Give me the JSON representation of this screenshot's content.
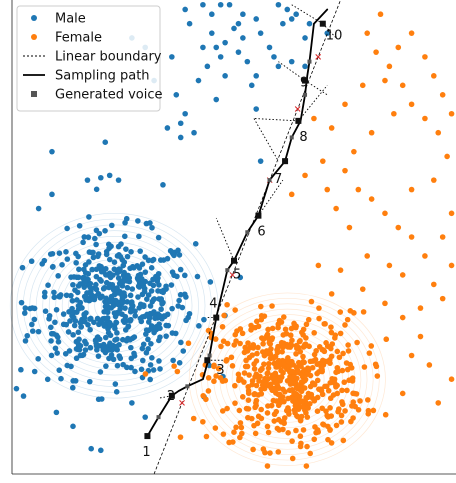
{
  "chart_data": {
    "type": "scatter",
    "title": "",
    "xlabel": "",
    "ylabel": "",
    "grid": false,
    "axes_visible": false,
    "xlim": [
      0,
      1
    ],
    "ylim": [
      0,
      1
    ],
    "legend": {
      "placement": "top-left",
      "entries": [
        {
          "label": "Male",
          "marker": "dot",
          "color": "#1f77b4"
        },
        {
          "label": "Female",
          "marker": "dot",
          "color": "#ff7f0e"
        },
        {
          "label": "Linear boundary",
          "marker": "dashed-line",
          "color": "#000000"
        },
        {
          "label": "Sampling path",
          "marker": "solid-line",
          "color": "#000000"
        },
        {
          "label": "Generated voice",
          "marker": "square",
          "color": "#555555"
        }
      ]
    },
    "series": [
      {
        "name": "Male",
        "color": "#1f77b4",
        "clusters": [
          {
            "center": [
              0.23,
              0.355
            ],
            "spread": [
              0.09,
              0.075
            ],
            "count": 560
          }
        ],
        "outliers": [
          [
            0.06,
            0.56
          ],
          [
            0.09,
            0.59
          ],
          [
            0.17,
            0.62
          ],
          [
            0.2,
            0.625
          ],
          [
            0.22,
            0.63
          ],
          [
            0.24,
            0.62
          ],
          [
            0.34,
            0.61
          ],
          [
            0.09,
            0.68
          ],
          [
            0.21,
            0.7
          ],
          [
            0.35,
            0.73
          ],
          [
            0.41,
            0.72
          ],
          [
            0.39,
            0.76
          ],
          [
            0.46,
            0.79
          ],
          [
            0.42,
            0.83
          ],
          [
            0.43,
            0.9
          ],
          [
            0.44,
            0.86
          ],
          [
            0.4,
            0.95
          ],
          [
            0.39,
            0.98
          ],
          [
            0.45,
            0.97
          ],
          [
            0.49,
            0.99
          ],
          [
            0.52,
            0.97
          ],
          [
            0.5,
            0.94
          ],
          [
            0.51,
            0.89
          ],
          [
            0.46,
            0.9
          ],
          [
            0.48,
            0.91
          ],
          [
            0.47,
            0.88
          ],
          [
            0.53,
            0.87
          ],
          [
            0.55,
            0.84
          ],
          [
            0.55,
            0.77
          ],
          [
            0.51,
            0.95
          ],
          [
            0.55,
            0.96
          ],
          [
            0.56,
            0.93
          ],
          [
            0.59,
            0.88
          ],
          [
            0.61,
            0.95
          ],
          [
            0.6,
            0.99
          ],
          [
            0.64,
            0.97
          ],
          [
            0.67,
            0.95
          ],
          [
            0.71,
            0.93
          ],
          [
            0.66,
            0.92
          ],
          [
            0.63,
            0.87
          ],
          [
            0.6,
            0.86
          ],
          [
            0.32,
            0.83
          ],
          [
            0.38,
            0.71
          ],
          [
            0.2,
            0.05
          ],
          [
            0.27,
            0.15
          ],
          [
            0.3,
            0.12
          ],
          [
            0.1,
            0.13
          ],
          [
            0.01,
            0.18
          ],
          [
            0.02,
            0.22
          ],
          [
            0.03,
            0.35
          ],
          [
            0.37,
            0.8
          ],
          [
            0.43,
            0.99
          ],
          [
            0.56,
            0.66
          ],
          [
            0.58,
            0.9
          ],
          [
            0.62,
            0.98
          ],
          [
            0.66,
            0.86
          ],
          [
            0.54,
            0.82
          ],
          [
            0.48,
            0.84
          ],
          [
            0.52,
            0.92
          ],
          [
            0.45,
            0.93
          ],
          [
            0.36,
            0.88
          ],
          [
            0.3,
            0.9
          ],
          [
            0.27,
            0.92
          ],
          [
            0.38,
            0.74
          ],
          [
            0.47,
            0.99
          ],
          [
            0.63,
            0.96
          ]
        ]
      },
      {
        "name": "Female",
        "color": "#ff7f0e",
        "clusters": [
          {
            "center": [
              0.62,
              0.2
            ],
            "spread": [
              0.085,
              0.07
            ],
            "count": 560
          }
        ],
        "outliers": [
          [
            0.71,
            0.6
          ],
          [
            0.73,
            0.56
          ],
          [
            0.78,
            0.6
          ],
          [
            0.81,
            0.58
          ],
          [
            0.84,
            0.55
          ],
          [
            0.87,
            0.52
          ],
          [
            0.9,
            0.5
          ],
          [
            0.76,
            0.52
          ],
          [
            0.69,
            0.44
          ],
          [
            0.74,
            0.43
          ],
          [
            0.8,
            0.46
          ],
          [
            0.85,
            0.44
          ],
          [
            0.88,
            0.42
          ],
          [
            0.93,
            0.46
          ],
          [
            0.95,
            0.4
          ],
          [
            0.97,
            0.37
          ],
          [
            0.92,
            0.35
          ],
          [
            0.88,
            0.33
          ],
          [
            0.84,
            0.36
          ],
          [
            0.79,
            0.39
          ],
          [
            0.77,
            0.34
          ],
          [
            0.72,
            0.38
          ],
          [
            0.9,
            0.6
          ],
          [
            0.95,
            0.62
          ],
          [
            0.98,
            0.67
          ],
          [
            0.96,
            0.72
          ],
          [
            0.93,
            0.75
          ],
          [
            0.9,
            0.78
          ],
          [
            0.88,
            0.82
          ],
          [
            0.85,
            0.86
          ],
          [
            0.87,
            0.9
          ],
          [
            0.9,
            0.93
          ],
          [
            0.93,
            0.88
          ],
          [
            0.95,
            0.84
          ],
          [
            0.97,
            0.8
          ],
          [
            0.99,
            0.76
          ],
          [
            0.83,
            0.97
          ],
          [
            0.8,
            0.93
          ],
          [
            0.82,
            0.89
          ],
          [
            0.84,
            0.83
          ],
          [
            0.86,
            0.76
          ],
          [
            0.81,
            0.72
          ],
          [
            0.77,
            0.68
          ],
          [
            0.75,
            0.64
          ],
          [
            0.7,
            0.66
          ],
          [
            0.68,
            0.75
          ],
          [
            0.72,
            0.73
          ],
          [
            0.79,
            0.82
          ],
          [
            0.75,
            0.78
          ],
          [
            0.66,
            0.63
          ],
          [
            0.63,
            0.59
          ],
          [
            0.99,
            0.55
          ],
          [
            0.97,
            0.5
          ],
          [
            0.99,
            0.44
          ],
          [
            0.92,
            0.29
          ],
          [
            0.94,
            0.23
          ],
          [
            0.96,
            0.15
          ],
          [
            0.99,
            0.2
          ],
          [
            0.9,
            0.25
          ],
          [
            0.88,
            0.17
          ]
        ]
      }
    ],
    "boundary": {
      "style": "dashed",
      "points": [
        [
          0.32,
          0.0
        ],
        [
          0.74,
          1.0
        ]
      ]
    },
    "path": {
      "label_numbers": [
        "1",
        "2",
        "3",
        "4",
        "5",
        "6",
        "7",
        "8",
        "9",
        "10"
      ],
      "waypoints": [
        [
          0.305,
          0.08
        ],
        [
          0.33,
          0.12
        ],
        [
          0.35,
          0.15
        ],
        [
          0.36,
          0.165
        ],
        [
          0.375,
          0.175
        ],
        [
          0.395,
          0.185
        ],
        [
          0.43,
          0.2
        ],
        [
          0.445,
          0.25
        ],
        [
          0.46,
          0.33
        ],
        [
          0.485,
          0.43
        ],
        [
          0.5,
          0.45
        ],
        [
          0.53,
          0.51
        ],
        [
          0.555,
          0.545
        ],
        [
          0.58,
          0.62
        ],
        [
          0.615,
          0.66
        ],
        [
          0.63,
          0.71
        ],
        [
          0.65,
          0.745
        ],
        [
          0.66,
          0.8
        ],
        [
          0.665,
          0.84
        ],
        [
          0.67,
          0.87
        ],
        [
          0.68,
          0.95
        ],
        [
          0.71,
          0.98
        ]
      ],
      "step_points": [
        [
          0.305,
          0.08
        ],
        [
          0.36,
          0.165
        ],
        [
          0.44,
          0.24
        ],
        [
          0.46,
          0.33
        ],
        [
          0.5,
          0.45
        ],
        [
          0.555,
          0.545
        ],
        [
          0.615,
          0.66
        ],
        [
          0.645,
          0.745
        ],
        [
          0.66,
          0.83
        ],
        [
          0.7,
          0.95
        ]
      ],
      "dotted_connectors": [
        [
          [
            0.36,
            0.165
          ],
          [
            0.33,
            0.16
          ]
        ],
        [
          [
            0.44,
            0.24
          ],
          [
            0.475,
            0.24
          ]
        ],
        [
          [
            0.46,
            0.33
          ],
          [
            0.44,
            0.33
          ]
        ],
        [
          [
            0.5,
            0.45
          ],
          [
            0.46,
            0.54
          ]
        ],
        [
          [
            0.555,
            0.545
          ],
          [
            0.61,
            0.62
          ]
        ],
        [
          [
            0.645,
            0.745
          ],
          [
            0.545,
            0.75
          ]
        ],
        [
          [
            0.545,
            0.75
          ],
          [
            0.6,
            0.66
          ]
        ],
        [
          [
            0.645,
            0.745
          ],
          [
            0.71,
            0.82
          ]
        ],
        [
          [
            0.66,
            0.83
          ],
          [
            0.6,
            0.87
          ]
        ],
        [
          [
            0.66,
            0.83
          ],
          [
            0.71,
            0.8
          ]
        ],
        [
          [
            0.7,
            0.95
          ],
          [
            0.63,
            0.99
          ]
        ],
        [
          [
            0.7,
            0.95
          ],
          [
            0.73,
            0.92
          ]
        ]
      ]
    }
  }
}
